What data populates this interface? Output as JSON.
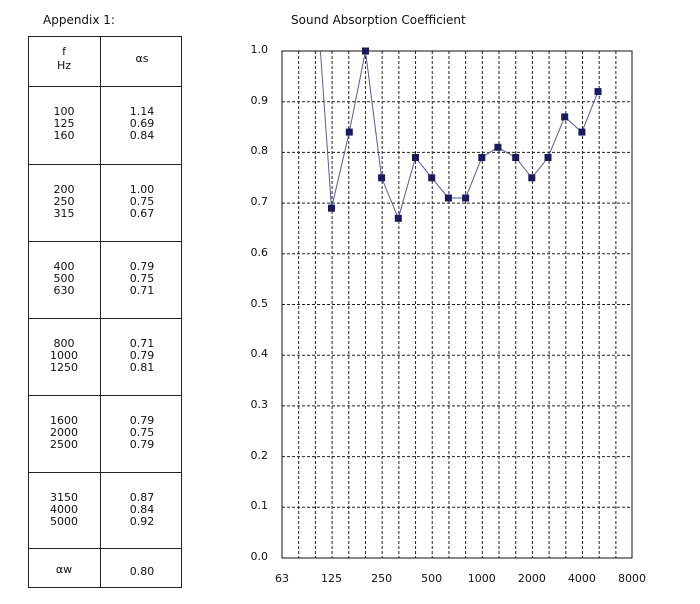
{
  "appendix_label": "Appendix 1:",
  "table": {
    "header": {
      "col1_line1": "f",
      "col1_line2": "Hz",
      "col2": "αs"
    },
    "groups": [
      {
        "freqs": [
          "100",
          "125",
          "160"
        ],
        "alphas": [
          "1.14",
          "0.69",
          "0.84"
        ]
      },
      {
        "freqs": [
          "200",
          "250",
          "315"
        ],
        "alphas": [
          "1.00",
          "0.75",
          "0.67"
        ]
      },
      {
        "freqs": [
          "400",
          "500",
          "630"
        ],
        "alphas": [
          "0.79",
          "0.75",
          "0.71"
        ]
      },
      {
        "freqs": [
          "800",
          "1000",
          "1250"
        ],
        "alphas": [
          "0.71",
          "0.79",
          "0.81"
        ]
      },
      {
        "freqs": [
          "1600",
          "2000",
          "2500"
        ],
        "alphas": [
          "0.79",
          "0.75",
          "0.79"
        ]
      },
      {
        "freqs": [
          "3150",
          "4000",
          "5000"
        ],
        "alphas": [
          "0.87",
          "0.84",
          "0.92"
        ]
      }
    ],
    "footer": {
      "label": "αw",
      "value": "0.80"
    }
  },
  "chart_data": {
    "type": "line",
    "title": "Sound Absorption  Coefficient",
    "xscale": "log",
    "xlim": [
      63,
      8000
    ],
    "ylim": [
      0,
      1.0
    ],
    "x_ticks": [
      "63",
      "125",
      "250",
      "500",
      "1000",
      "2000",
      "4000",
      "8000"
    ],
    "y_ticks": [
      "0.0",
      "0.1",
      "0.2",
      "0.3",
      "0.4",
      "0.5",
      "0.6",
      "0.7",
      "0.8",
      "0.9",
      "1.0"
    ],
    "grid": true,
    "marker_color": "#1a1a5e",
    "line_color": "#5a5aa0",
    "series": [
      {
        "x": [
          100,
          125,
          160,
          200,
          250,
          315,
          400,
          500,
          630,
          800,
          1000,
          1250,
          1600,
          2000,
          2500,
          3150,
          4000,
          5000
        ],
        "y": [
          1.14,
          0.69,
          0.84,
          1.0,
          0.75,
          0.67,
          0.79,
          0.75,
          0.71,
          0.71,
          0.79,
          0.81,
          0.79,
          0.75,
          0.79,
          0.87,
          0.84,
          0.92
        ]
      }
    ]
  }
}
